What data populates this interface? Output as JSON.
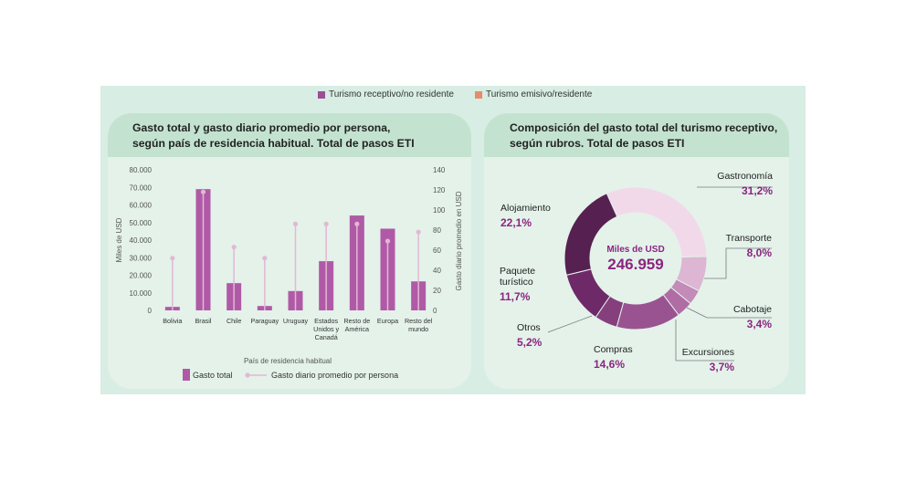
{
  "top_legend": [
    {
      "label": "Turismo receptivo/no residente",
      "color": "#9b4f96"
    },
    {
      "label": "Turismo emisivo/residente",
      "color": "#e88a6c"
    }
  ],
  "left_card": {
    "title_line1": "Gasto total y gasto diario promedio por persona,",
    "title_line2": "según país de residencia habitual. Total de pasos ETI"
  },
  "right_card": {
    "title_line1": "Composición del gasto total del turismo receptivo,",
    "title_line2": "según rubros. Total de pasos ETI",
    "center_label": "Miles de USD",
    "center_value": "246.959"
  },
  "colors": {
    "bar": "#b05aa7",
    "lollipop": "#e2b8d4",
    "axis_text": "#555555",
    "pct_text": "#8b2580"
  },
  "chart_data": [
    {
      "type": "bar",
      "categories": [
        [
          "Bolivia"
        ],
        [
          "Brasil"
        ],
        [
          "Chile"
        ],
        [
          "Paraguay"
        ],
        [
          "Uruguay"
        ],
        [
          "Estados",
          "Unidos y",
          "Canadá"
        ],
        [
          "Resto de",
          "América"
        ],
        [
          "Europa"
        ],
        [
          "Resto del",
          "mundo"
        ]
      ],
      "series": [
        {
          "name": "Gasto total",
          "axis": "left",
          "values": [
            2000,
            69000,
            15500,
            2500,
            11000,
            28000,
            54000,
            46500,
            16500
          ]
        },
        {
          "name": "Gasto diario promedio por persona",
          "axis": "right",
          "values": [
            52,
            118,
            63,
            52,
            86,
            86,
            86,
            69,
            78
          ]
        }
      ],
      "xlabel": "País de residencia habitual",
      "ylabel": "Miles de USD",
      "y2label": "Gasto diario promedio en USD",
      "ylim": [
        0,
        80000
      ],
      "y2lim": [
        0,
        140
      ],
      "yticks": [
        "0",
        "10.000",
        "20.000",
        "30.000",
        "40.000",
        "50.000",
        "60.000",
        "70.000",
        "80.000"
      ],
      "y2ticks": [
        "0",
        "20",
        "40",
        "60",
        "80",
        "100",
        "120",
        "140"
      ],
      "legend": [
        {
          "label": "Gasto total"
        },
        {
          "label": "Gasto diario promedio por persona"
        }
      ]
    },
    {
      "type": "pie",
      "donut": true,
      "slices": [
        {
          "label": "Gastronomía",
          "lines": [
            "Gastronomía"
          ],
          "pct": "31,2%",
          "value": 31.2,
          "color": "#f2d9ea"
        },
        {
          "label": "Transporte",
          "lines": [
            "Transporte"
          ],
          "pct": "8,0%",
          "value": 8.0,
          "color": "#dcb6d3"
        },
        {
          "label": "Cabotaje",
          "lines": [
            "Cabotaje"
          ],
          "pct": "3,4%",
          "value": 3.4,
          "color": "#c48ab8"
        },
        {
          "label": "Excursiones",
          "lines": [
            "Excursiones"
          ],
          "pct": "3,7%",
          "value": 3.7,
          "color": "#b06ca5"
        },
        {
          "label": "Compras",
          "lines": [
            "Compras"
          ],
          "pct": "14,6%",
          "value": 14.6,
          "color": "#9a5391"
        },
        {
          "label": "Otros",
          "lines": [
            "Otros"
          ],
          "pct": "5,2%",
          "value": 5.2,
          "color": "#843f7c"
        },
        {
          "label": "Paquete turístico",
          "lines": [
            "Paquete",
            "turístico"
          ],
          "pct": "11,7%",
          "value": 11.7,
          "color": "#6e2a68"
        },
        {
          "label": "Alojamiento",
          "lines": [
            "Alojamiento"
          ],
          "pct": "22,1%",
          "value": 22.1,
          "color": "#562051"
        }
      ]
    }
  ]
}
